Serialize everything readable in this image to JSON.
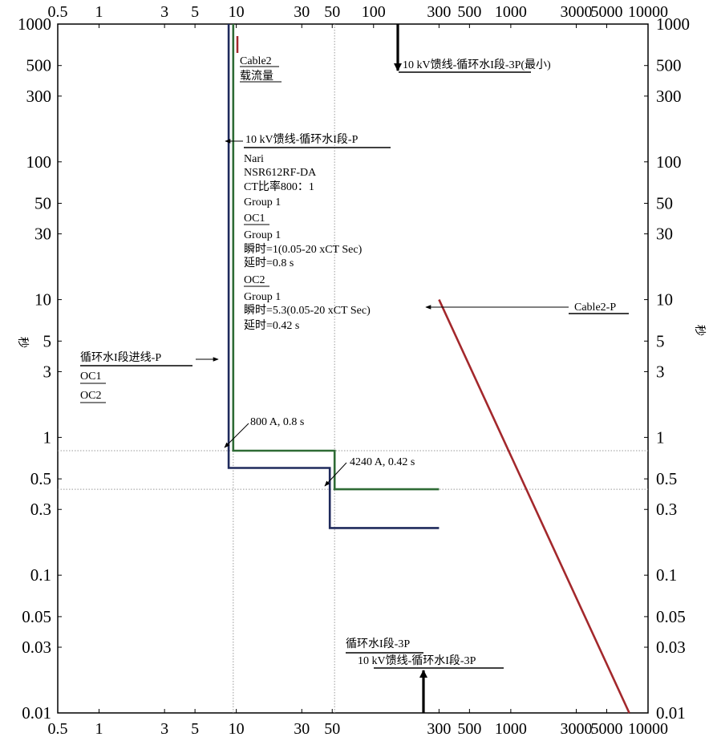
{
  "chart_data": {
    "type": "line",
    "scale": {
      "x": "log",
      "y": "log"
    },
    "xlim": [
      0.5,
      10000
    ],
    "ylim": [
      0.01,
      1000
    ],
    "x_ticks_top": [
      "0.5",
      "1",
      "3",
      "5",
      "10",
      "30",
      "50",
      "100",
      "300",
      "500",
      "1000",
      "3000",
      "5000",
      "10000"
    ],
    "x_ticks_bottom": [
      "0.5",
      "1",
      "3",
      "5",
      "10",
      "30",
      "50",
      "300",
      "500",
      "1000",
      "3000",
      "5000",
      "10000"
    ],
    "y_ticks": [
      "1000",
      "500",
      "300",
      "100",
      "50",
      "30",
      "10",
      "5",
      "3",
      "1",
      "0.5",
      "0.3",
      "0.1",
      "0.05",
      "0.03",
      "0.01"
    ],
    "ylabel": "秒",
    "grid": false,
    "colors": {
      "green": "#2e6b35",
      "navy": "#1f2a5c",
      "red": "#a3282c",
      "ref": "#999999",
      "axis": "#000000"
    },
    "series": [
      {
        "name": "10 kV馈线-循环水I段-P",
        "color": "#2e6b35",
        "points": [
          [
            9.5,
            1000
          ],
          [
            9.5,
            0.8
          ],
          [
            52,
            0.8
          ],
          [
            52,
            0.42
          ],
          [
            300,
            0.42
          ]
        ]
      },
      {
        "name": "循环水I段进线-P",
        "color": "#1f2a5c",
        "points": [
          [
            8.8,
            1000
          ],
          [
            8.8,
            0.6
          ],
          [
            48,
            0.6
          ],
          [
            48,
            0.22
          ],
          [
            300,
            0.22
          ]
        ]
      },
      {
        "name": "Cable2-P",
        "color": "#a3282c",
        "points": [
          [
            300,
            10
          ],
          [
            7300,
            0.01
          ]
        ]
      }
    ],
    "reference_lines": {
      "x": [
        9.5,
        52
      ],
      "y": [
        0.8,
        0.42
      ]
    },
    "arrows": [
      {
        "label": "10 kV馈线-循环水I段-3P(最小)",
        "x": 160,
        "direction": "down"
      },
      {
        "label": "循环水I段-3P",
        "x": 300,
        "direction": "up"
      }
    ],
    "annotations": {
      "cable2_capacity": {
        "lines": [
          "Cable2",
          "载流量"
        ]
      },
      "feeder": {
        "title": "10 kV馈线-循环水I段-P",
        "lines": [
          "Nari",
          "NSR612RF-DA",
          "CT比率800：1",
          "Group 1",
          "OC1",
          "Group 1",
          "瞬时=1(0.05-20 xCT Sec)",
          "延时=0.8 s",
          "OC2",
          "Group 1",
          "瞬时=5.3(0.05-20 xCT Sec)",
          "延时=0.42 s"
        ]
      },
      "incoming": {
        "title": "循环水I段进线-P",
        "lines": [
          "OC1",
          "OC2"
        ]
      },
      "cable2_p": "Cable2-P",
      "point1": "800 A, 0.8 s",
      "point2": "4240 A, 0.42 s",
      "top_arrow": "10 kV馈线-循环水I段-3P(最小)",
      "bottom_arrow_1": "循环水I段-3P",
      "bottom_arrow_2": "10 kV馈线-循环水I段-3P"
    }
  }
}
